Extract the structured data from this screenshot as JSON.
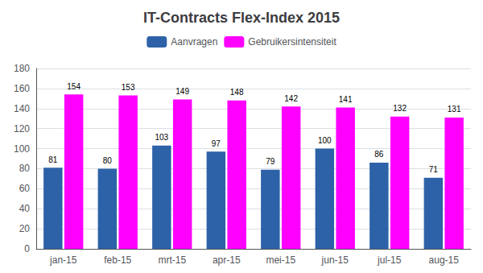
{
  "chart_data": {
    "type": "bar",
    "title": "IT-Contracts Flex-Index 2015",
    "categories": [
      "jan-15",
      "feb-15",
      "mrt-15",
      "apr-15",
      "mei-15",
      "jun-15",
      "jul-15",
      "aug-15"
    ],
    "series": [
      {
        "name": "Aanvragen",
        "color": "#2E62A8",
        "values": [
          81,
          80,
          103,
          97,
          79,
          100,
          86,
          71
        ]
      },
      {
        "name": "Gebruikersintensiteit",
        "color": "#FF00FF",
        "values": [
          154,
          153,
          149,
          148,
          142,
          141,
          132,
          131
        ]
      }
    ],
    "ylim": [
      0,
      180
    ],
    "yticks": [
      0,
      20,
      40,
      60,
      80,
      100,
      120,
      140,
      160,
      180
    ],
    "grid": true,
    "legend": "top",
    "data_labels": true
  }
}
